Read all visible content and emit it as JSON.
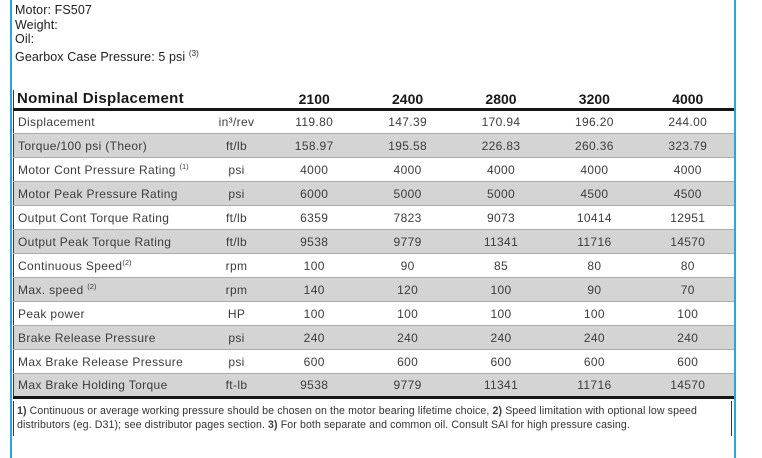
{
  "header": {
    "motor": "Motor: FS507",
    "weight": "Weight:",
    "oil": "Oil:",
    "gearbox_pressure": "Gearbox Case Pressure: 5 psi ",
    "gearbox_sup": "(3)"
  },
  "table": {
    "title": "Nominal Displacement",
    "columns": [
      "2100",
      "2400",
      "2800",
      "3200",
      "4000"
    ],
    "rows": [
      {
        "label": "Displacement",
        "sup": "",
        "unit": "in³/rev",
        "values": [
          "119.80",
          "147.39",
          "170.94",
          "196.20",
          "244.00"
        ]
      },
      {
        "label": "Torque/100 psi (Theor)",
        "sup": "",
        "unit": "ft/lb",
        "values": [
          "158.97",
          "195.58",
          "226.83",
          "260.36",
          "323.79"
        ]
      },
      {
        "label": "Motor Cont Pressure Rating ",
        "sup": "(1)",
        "unit": "psi",
        "values": [
          "4000",
          "4000",
          "4000",
          "4000",
          "4000"
        ]
      },
      {
        "label": "Motor Peak Pressure Rating",
        "sup": "",
        "unit": "psi",
        "values": [
          "6000",
          "5000",
          "5000",
          "4500",
          "4500"
        ]
      },
      {
        "label": "Output Cont Torque Rating",
        "sup": "",
        "unit": "ft/lb",
        "values": [
          "6359",
          "7823",
          "9073",
          "10414",
          "12951"
        ]
      },
      {
        "label": "Output Peak Torque Rating",
        "sup": "",
        "unit": "ft/lb",
        "values": [
          "9538",
          "9779",
          "11341",
          "11716",
          "14570"
        ]
      },
      {
        "label": "Continuous Speed",
        "sup": "(2)",
        "unit": "rpm",
        "values": [
          "100",
          "90",
          "85",
          "80",
          "80"
        ]
      },
      {
        "label": "Max. speed ",
        "sup": "(2)",
        "unit": "rpm",
        "values": [
          "140",
          "120",
          "100",
          "90",
          "70"
        ]
      },
      {
        "label": "Peak power",
        "sup": "",
        "unit": "HP",
        "values": [
          "100",
          "100",
          "100",
          "100",
          "100"
        ]
      },
      {
        "label": "Brake Release Pressure",
        "sup": "",
        "unit": "psi",
        "values": [
          "240",
          "240",
          "240",
          "240",
          "240"
        ]
      },
      {
        "label": "Max Brake Release Pressure",
        "sup": "",
        "unit": "psi",
        "values": [
          "600",
          "600",
          "600",
          "600",
          "600"
        ]
      },
      {
        "label": "Max Brake Holding Torque",
        "sup": "",
        "unit": "ft-lb",
        "values": [
          "9538",
          "9779",
          "11341",
          "11716",
          "14570"
        ]
      }
    ]
  },
  "footnotes": [
    {
      "marker": "1)",
      "text": "Continuous or average working pressure should be chosen on the motor bearing lifetime choice, "
    },
    {
      "marker": "2)",
      "text": "Speed limitation with optional low speed distributors (eg. D31); see distributor pages section. "
    },
    {
      "marker": "3)",
      "text": "For both separate and common oil. Consult SAI for high pressure casing."
    }
  ],
  "colors": {
    "accent_blue": "#29a6de",
    "row_gray": "#d4d4d4",
    "rule_black": "#161616"
  }
}
